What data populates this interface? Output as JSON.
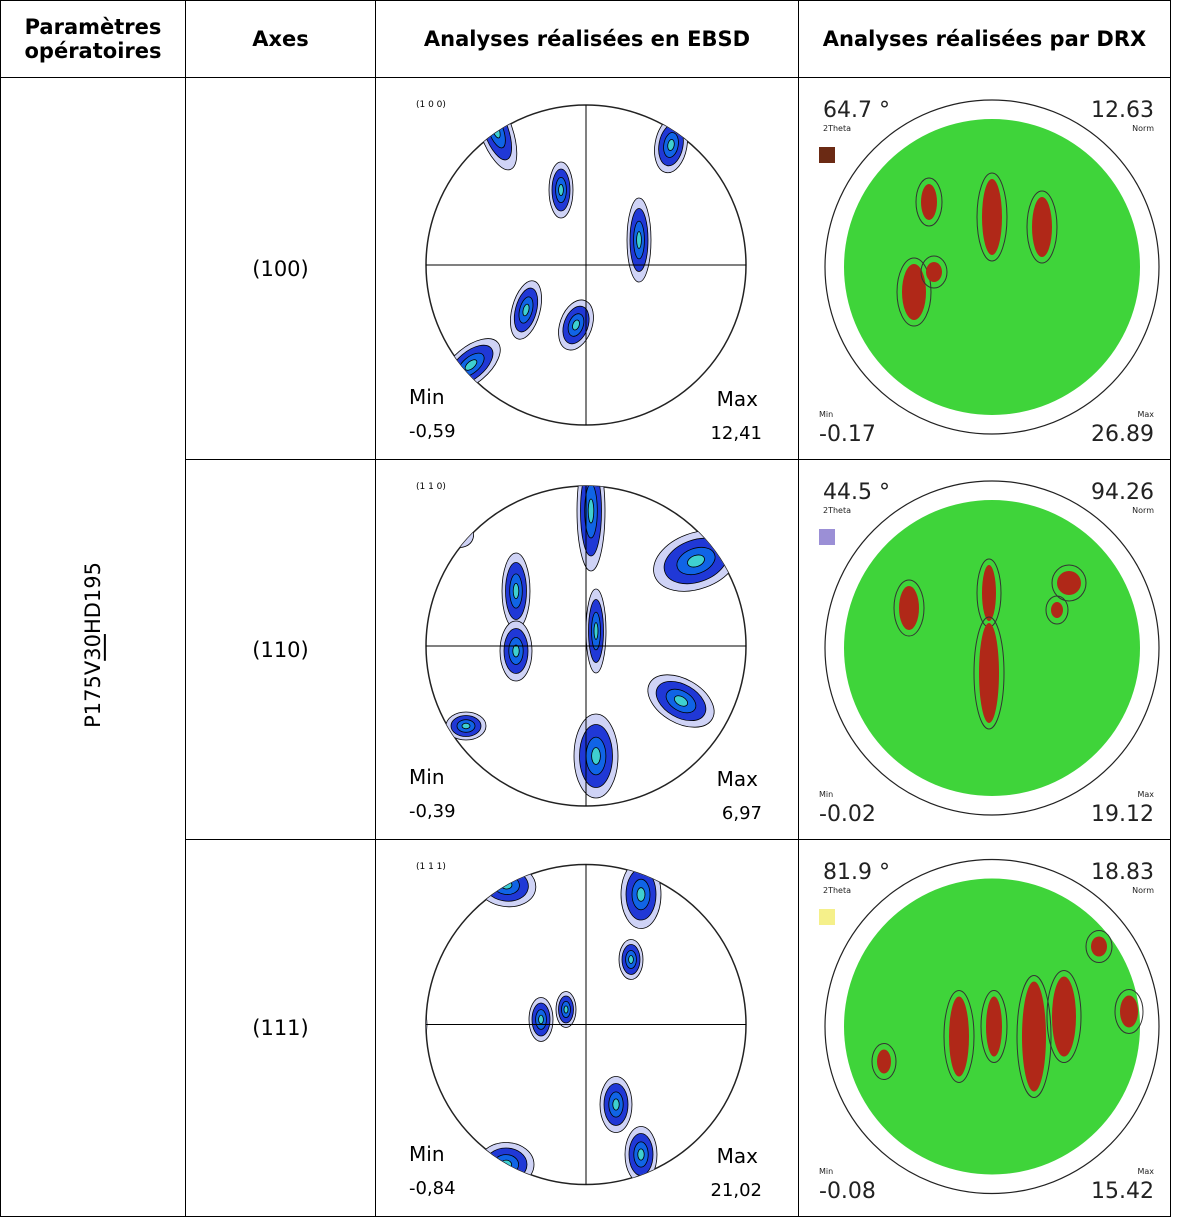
{
  "header": {
    "parameters": [
      "Paramètres",
      "opératoires"
    ],
    "axes": "Axes",
    "ebsd": "Analyses réalisées en EBSD",
    "drx": "Analyses réalisées par DRX"
  },
  "sample": {
    "parts": [
      "P175V",
      "30",
      "HD195"
    ]
  },
  "rows": [
    {
      "axis": "(100)",
      "ebsd": {
        "label": "(1 0 0)",
        "min_label": "Min",
        "min": "-0,59",
        "max_label": "Max",
        "max": "12,41"
      },
      "drx": {
        "angle": "64.7 °",
        "angle_label": "2Theta",
        "norm": "12.63",
        "norm_label": "Norm",
        "min_label": "Min",
        "min": "-0.17",
        "max_label": "Max",
        "max": "26.89",
        "color": "#6b2a14"
      }
    },
    {
      "axis": "(110)",
      "ebsd": {
        "label": "(1 1 0)",
        "min_label": "Min",
        "min": "-0,39",
        "max_label": "Max",
        "max": "6,97"
      },
      "drx": {
        "angle": "44.5 °",
        "angle_label": "2Theta",
        "norm": "94.26",
        "norm_label": "Norm",
        "min_label": "Min",
        "min": "-0.02",
        "max_label": "Max",
        "max": "19.12",
        "color": "#9b8fd6"
      }
    },
    {
      "axis": "(111)",
      "ebsd": {
        "label": "(1 1 1)",
        "min_label": "Min",
        "min": "-0,84",
        "max_label": "Max",
        "max": "21,02"
      },
      "drx": {
        "angle": "81.9 °",
        "angle_label": "2Theta",
        "norm": "18.83",
        "norm_label": "Norm",
        "min_label": "Min",
        "min": "-0.08",
        "max_label": "Max",
        "max": "15.42",
        "color": "#f5f08a"
      }
    }
  ]
}
